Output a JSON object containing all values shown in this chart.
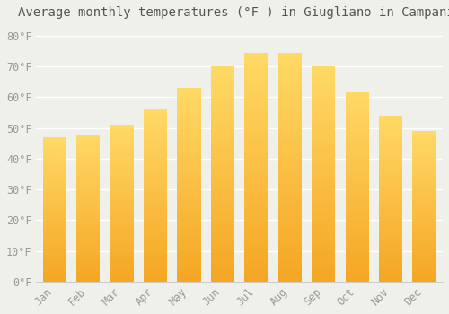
{
  "title": "Average monthly temperatures (°F ) in Giugliano in Campania",
  "months": [
    "Jan",
    "Feb",
    "Mar",
    "Apr",
    "May",
    "Jun",
    "Jul",
    "Aug",
    "Sep",
    "Oct",
    "Nov",
    "Dec"
  ],
  "values": [
    47,
    48,
    51,
    56,
    63,
    70,
    74.5,
    74.5,
    70,
    62,
    54,
    49
  ],
  "bar_color_bottom": "#F5A623",
  "bar_color_top": "#FFD966",
  "ylim": [
    0,
    84
  ],
  "yticks": [
    0,
    10,
    20,
    30,
    40,
    50,
    60,
    70,
    80
  ],
  "ytick_labels": [
    "0°F",
    "10°F",
    "20°F",
    "30°F",
    "40°F",
    "50°F",
    "60°F",
    "70°F",
    "80°F"
  ],
  "background_color": "#f0f0eb",
  "grid_color": "#ffffff",
  "title_fontsize": 10,
  "tick_fontsize": 8.5,
  "font_family": "monospace",
  "bar_width": 0.7
}
